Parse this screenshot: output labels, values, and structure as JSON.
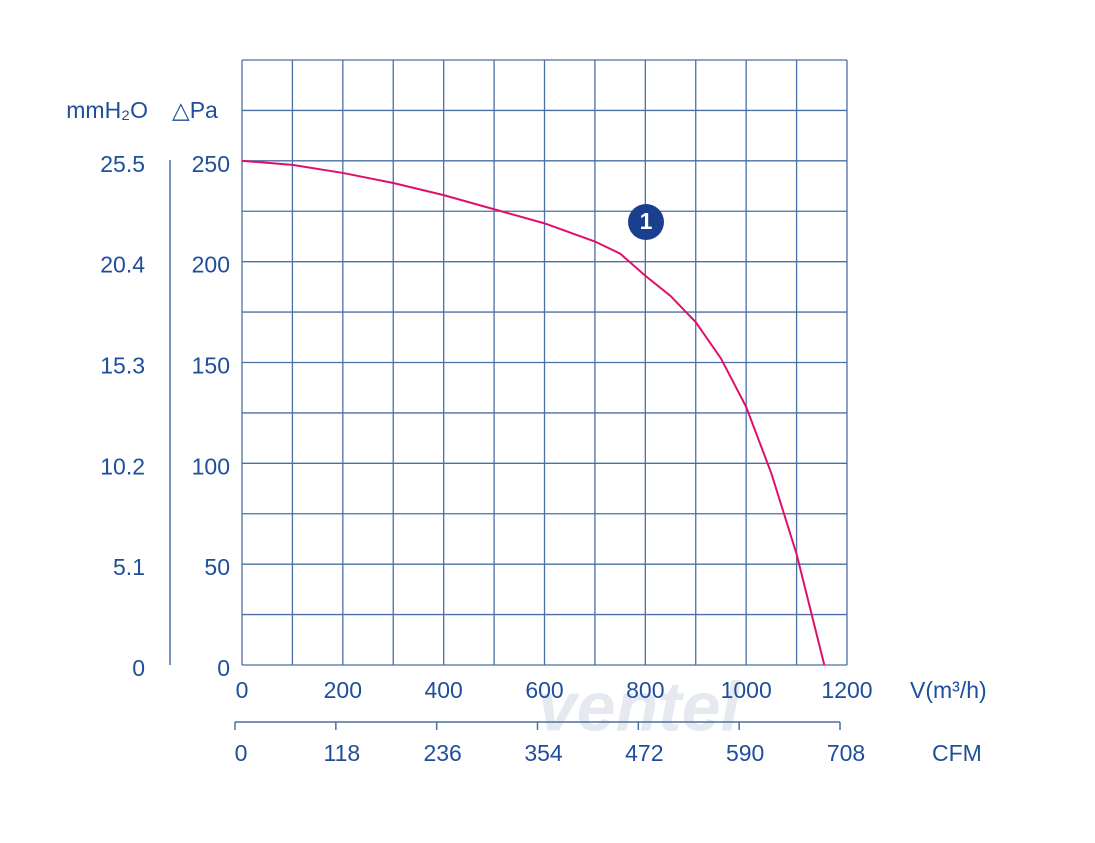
{
  "chart_data": {
    "type": "line",
    "x": [
      0,
      100,
      200,
      300,
      400,
      500,
      600,
      700,
      750,
      800,
      850,
      900,
      950,
      1000,
      1050,
      1100,
      1155
    ],
    "values": [
      250,
      248,
      244,
      239,
      233,
      226,
      219,
      210,
      204,
      193,
      183,
      170,
      152,
      128,
      95,
      55,
      0
    ],
    "color": "#e0106a",
    "xlim": [
      0,
      1200
    ],
    "xticks": [
      0,
      200,
      400,
      600,
      800,
      1000,
      1200
    ],
    "ylim": [
      0,
      300
    ],
    "yticks": [
      0,
      50,
      100,
      150,
      200,
      250
    ],
    "y2lim": [
      0,
      30.6
    ],
    "y2ticks": [
      0,
      5.1,
      10.2,
      15.3,
      20.4,
      25.5
    ],
    "x2lim": [
      0,
      708
    ],
    "x2ticks": [
      0,
      118,
      236,
      354,
      472,
      590,
      708
    ],
    "xgrid": [
      0,
      100,
      200,
      300,
      400,
      500,
      600,
      700,
      800,
      900,
      1000,
      1100,
      1200
    ],
    "ygrid": [
      0,
      25,
      50,
      75,
      100,
      125,
      150,
      175,
      200,
      225,
      250,
      275,
      300
    ],
    "grid": true,
    "y_label": "△Pa",
    "y2_label": "mmH₂O",
    "x_label": "V(m³/h)",
    "x2_label": "CFM",
    "annotation": "1",
    "watermark": "ventel"
  }
}
